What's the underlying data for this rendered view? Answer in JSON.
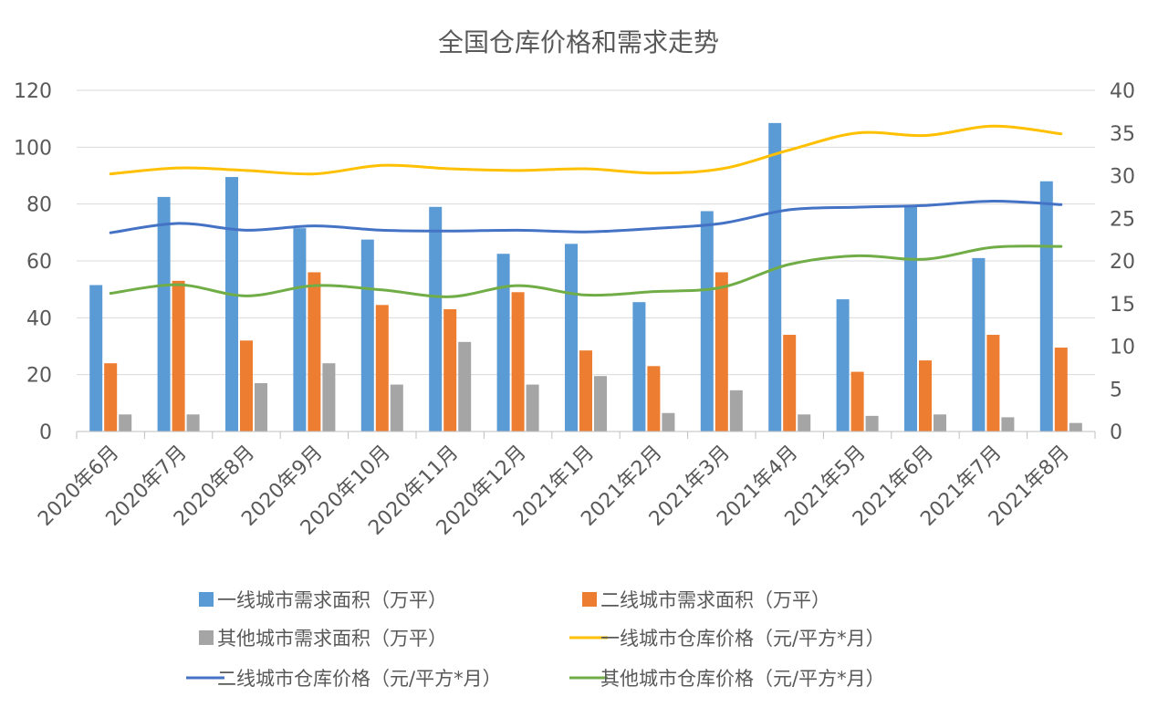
{
  "chart_data": {
    "type": "bar",
    "title": "全国仓库价格和需求走势",
    "categories": [
      "2020年6月",
      "2020年7月",
      "2020年8月",
      "2020年9月",
      "2020年10月",
      "2020年11月",
      "2020年12月",
      "2021年1月",
      "2021年2月",
      "2021年3月",
      "2021年4月",
      "2021年5月",
      "2021年6月",
      "2021年7月",
      "2021年8月"
    ],
    "y_left": {
      "min": 0,
      "max": 120,
      "ticks": [
        "0",
        "20",
        "40",
        "60",
        "80",
        "100",
        "120"
      ]
    },
    "y_right": {
      "min": 0,
      "max": 40,
      "ticks": [
        "0",
        "5",
        "10",
        "15",
        "20",
        "25",
        "30",
        "35",
        "40"
      ]
    },
    "grid": true,
    "legend_position": "bottom",
    "series": [
      {
        "name": "一线城市需求面积（万平）",
        "type": "bar",
        "axis": "left",
        "color": "#5b9bd5",
        "values": [
          51.5,
          82.5,
          89.5,
          71.5,
          67.5,
          79,
          62.5,
          66,
          45.5,
          77.5,
          108.5,
          46.5,
          79,
          61,
          88
        ]
      },
      {
        "name": "二线城市需求面积（万平）",
        "type": "bar",
        "axis": "left",
        "color": "#ed7d31",
        "values": [
          24,
          53,
          32,
          56,
          44.5,
          43,
          49,
          28.5,
          23,
          56,
          34,
          21,
          25,
          34,
          29.5
        ]
      },
      {
        "name": "其他城市需求面积（万平）",
        "type": "bar",
        "axis": "left",
        "color": "#a5a5a5",
        "values": [
          6,
          6,
          17,
          24,
          16.5,
          31.5,
          16.5,
          19.5,
          6.5,
          14.5,
          6,
          5.5,
          6,
          5,
          3
        ]
      },
      {
        "name": "一线城市仓库价格（元/平方*月）",
        "type": "line",
        "axis": "right",
        "color": "#ffc000",
        "values": [
          30.2,
          30.9,
          30.6,
          30.2,
          31.2,
          30.8,
          30.6,
          30.8,
          30.3,
          30.8,
          33.0,
          35.0,
          34.7,
          35.8,
          34.9
        ]
      },
      {
        "name": "二线城市仓库价格（元/平方*月）",
        "type": "line",
        "axis": "right",
        "color": "#4472c4",
        "values": [
          23.3,
          24.4,
          23.6,
          24.1,
          23.6,
          23.5,
          23.6,
          23.4,
          23.8,
          24.4,
          26.0,
          26.3,
          26.5,
          27.0,
          26.6
        ]
      },
      {
        "name": "其他城市仓库价格（元/平方*月）",
        "type": "line",
        "axis": "right",
        "color": "#70ad47",
        "values": [
          16.2,
          17.2,
          15.9,
          17.1,
          16.6,
          15.8,
          17.1,
          16.0,
          16.4,
          16.9,
          19.6,
          20.6,
          20.2,
          21.6,
          21.7
        ]
      }
    ]
  }
}
